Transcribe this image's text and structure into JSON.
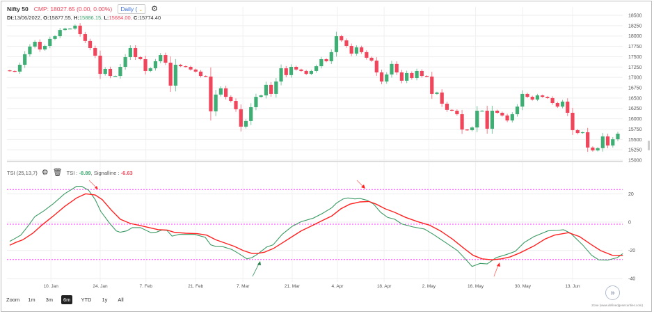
{
  "header": {
    "symbol": "Nifty 50",
    "cmp": "CMP: 18027.65 (0.00, 0.00%)",
    "interval": "Daily (",
    "date_label": "Dt:",
    "date": "13/06/2022,",
    "open_label": "O:",
    "open": "15877.55,",
    "high_label": "H:",
    "high": "15886.15,",
    "low_label": "L:",
    "low": "15684.00,",
    "close_label": "C:",
    "close": "15774.40"
  },
  "tsi": {
    "name": "TSI (25,13,7)",
    "tsi_label": "TSI :",
    "tsi_value": "-8.89",
    "signal_label": ", Signalline :",
    "signal_value": "-6.63"
  },
  "zoom": {
    "label": "Zoom",
    "options": [
      "1m",
      "3m",
      "6m",
      "YTD",
      "1y",
      "All"
    ],
    "active": "6m"
  },
  "credit": "Zone (www.definedgesecurities.com)",
  "colors": {
    "up": "#3fae74",
    "down": "#f0455a",
    "tsi": "#3a9a63",
    "signal": "#ff2020",
    "levels": "#ff33ff"
  },
  "chart_data": [
    {
      "type": "candlestick",
      "title": "Nifty 50",
      "ylim": [
        15000,
        18500
      ],
      "yticks": [
        "18500",
        "18250",
        "18000",
        "17750",
        "17500",
        "17250",
        "17000",
        "16750",
        "16500",
        "16250",
        "16000",
        "15750",
        "15500",
        "15250",
        "15000"
      ],
      "closes": [
        17155,
        17140,
        17305,
        17560,
        17745,
        17860,
        17675,
        17760,
        17930,
        17995,
        18145,
        18180,
        18180,
        18250,
        18045,
        17880,
        17710,
        17525,
        17085,
        17205,
        17035,
        17035,
        17255,
        17490,
        17710,
        17490,
        17440,
        17155,
        17220,
        17390,
        17540,
        17355,
        16800,
        17305,
        17270,
        17255,
        17190,
        17140,
        17035,
        17020,
        16180,
        16585,
        16735,
        16530,
        16430,
        16230,
        15810,
        15945,
        16280,
        16530,
        16565,
        16820,
        16600,
        16900,
        17220,
        17055,
        17255,
        17190,
        17155,
        17085,
        17155,
        17270,
        17440,
        17390,
        17610,
        17995,
        17895,
        17760,
        17575,
        17725,
        17610,
        17475,
        17405,
        17120,
        16900,
        17070,
        17325,
        17120,
        16920,
        17105,
        16985,
        17155,
        17035,
        17020,
        16600,
        16635,
        16365,
        16215,
        16195,
        16110,
        15740,
        15725,
        15790,
        16195,
        16195,
        15760,
        16195,
        16145,
        16080,
        15960,
        16110,
        16295,
        16600,
        16530,
        16465,
        16565,
        16530,
        16500,
        16380,
        16295,
        16415,
        16145,
        15725,
        15655,
        15675,
        15305,
        15235,
        15290,
        15575,
        15355,
        15505,
        15640
      ],
      "xticks": [
        {
          "label": "10. Jan",
          "bar": 8.2
        },
        {
          "label": "24. Jan",
          "bar": 18.0
        },
        {
          "label": "7. Feb",
          "bar": 27.1
        },
        {
          "label": "21. Feb",
          "bar": 37.0
        },
        {
          "label": "7. Mar",
          "bar": 46.4
        },
        {
          "label": "21. Mar",
          "bar": 56.2
        },
        {
          "label": "4. Apr",
          "bar": 65.2
        },
        {
          "label": "18. Apr",
          "bar": 74.5
        },
        {
          "label": "2. May",
          "bar": 83.4
        },
        {
          "label": "16. May",
          "bar": 92.7
        },
        {
          "label": "30. May",
          "bar": 102.1
        },
        {
          "label": "13. Jun",
          "bar": 112.0
        }
      ]
    },
    {
      "type": "line",
      "title": "TSI (25,13,7)",
      "ylim": [
        -40,
        25
      ],
      "yticks": [
        "20",
        "0",
        "-20",
        "-40"
      ],
      "levels": [
        23,
        -1.5,
        -26.5
      ],
      "series": [
        {
          "name": "TSI",
          "points": [
            [
              0,
              -13.6
            ],
            [
              1.1,
              -11.5
            ],
            [
              2.2,
              -9.2
            ],
            [
              3.6,
              -3.0
            ],
            [
              5.0,
              3.9
            ],
            [
              6.8,
              8.0
            ],
            [
              8.7,
              13.1
            ],
            [
              10.9,
              20.0
            ],
            [
              13.3,
              25.3
            ],
            [
              14.3,
              25.3
            ],
            [
              15.7,
              22.5
            ],
            [
              17.0,
              15.9
            ],
            [
              18.1,
              7.7
            ],
            [
              19.8,
              -0.5
            ],
            [
              21.2,
              -6.2
            ],
            [
              22.0,
              -7.2
            ],
            [
              23.3,
              -6.2
            ],
            [
              24.4,
              -3.9
            ],
            [
              26.0,
              -3.9
            ],
            [
              28.1,
              -7.5
            ],
            [
              29.2,
              -7.1
            ],
            [
              30.3,
              -5.6
            ],
            [
              31.3,
              -5.9
            ],
            [
              32.3,
              -9.9
            ],
            [
              33.7,
              -8.7
            ],
            [
              36.8,
              -8.7
            ],
            [
              38.9,
              -10.8
            ],
            [
              40.0,
              -16.1
            ],
            [
              41.0,
              -17.2
            ],
            [
              42.4,
              -17.4
            ],
            [
              44.2,
              -19.4
            ],
            [
              45.6,
              -22.3
            ],
            [
              47.2,
              -26.0
            ],
            [
              48.2,
              -25.1
            ],
            [
              49.3,
              -22.7
            ],
            [
              51.1,
              -17.7
            ],
            [
              52.4,
              -16.1
            ],
            [
              54.2,
              -8.7
            ],
            [
              56.2,
              -3.0
            ],
            [
              58.0,
              0.3
            ],
            [
              60.4,
              2.8
            ],
            [
              62.2,
              6.1
            ],
            [
              64.1,
              10.2
            ],
            [
              65.0,
              13.4
            ],
            [
              66.3,
              16.3
            ],
            [
              67.3,
              17.1
            ],
            [
              68.7,
              16.4
            ],
            [
              69.7,
              16.7
            ],
            [
              71.1,
              15.4
            ],
            [
              72.4,
              12.7
            ],
            [
              73.8,
              6.9
            ],
            [
              75.2,
              3.3
            ],
            [
              76.6,
              2.0
            ],
            [
              78.0,
              -1.3
            ],
            [
              80.2,
              -3.4
            ],
            [
              82.5,
              -4.9
            ],
            [
              84.3,
              -8.7
            ],
            [
              86.7,
              -14.4
            ],
            [
              89.1,
              -20.2
            ],
            [
              90.4,
              -25.1
            ],
            [
              92.0,
              -31.4
            ],
            [
              93.6,
              -29.2
            ],
            [
              95.0,
              -29.6
            ],
            [
              96.8,
              -25.1
            ],
            [
              98.8,
              -23.0
            ],
            [
              100.6,
              -20.7
            ],
            [
              102.4,
              -14.4
            ],
            [
              104.3,
              -10.3
            ],
            [
              107.1,
              -6.2
            ],
            [
              108.9,
              -5.9
            ],
            [
              110.2,
              -5.4
            ],
            [
              111.6,
              -7.9
            ],
            [
              114.0,
              -16.1
            ],
            [
              115.8,
              -23.5
            ],
            [
              117.2,
              -26.7
            ],
            [
              119.0,
              -26.9
            ],
            [
              120.9,
              -25.1
            ],
            [
              122.0,
              -22.3
            ]
          ]
        },
        {
          "name": "Signalline",
          "points": [
            [
              0,
              -16.4
            ],
            [
              1.2,
              -14.4
            ],
            [
              2.6,
              -12.5
            ],
            [
              4.6,
              -7.9
            ],
            [
              6.4,
              -2.1
            ],
            [
              8.7,
              4.4
            ],
            [
              10.9,
              11.0
            ],
            [
              13.3,
              17.1
            ],
            [
              15.1,
              20.0
            ],
            [
              17.0,
              19.2
            ],
            [
              18.4,
              15.9
            ],
            [
              20.2,
              8.5
            ],
            [
              22.0,
              2.0
            ],
            [
              24.0,
              -1.0
            ],
            [
              25.8,
              -2.3
            ],
            [
              27.6,
              -3.8
            ],
            [
              29.5,
              -5.3
            ],
            [
              31.3,
              -5.6
            ],
            [
              32.7,
              -7.2
            ],
            [
              35.0,
              -7.9
            ],
            [
              37.3,
              -8.2
            ],
            [
              39.2,
              -9.2
            ],
            [
              41.0,
              -12.5
            ],
            [
              42.8,
              -14.8
            ],
            [
              44.7,
              -17.2
            ],
            [
              46.5,
              -20.2
            ],
            [
              48.2,
              -22.2
            ],
            [
              49.3,
              -22.2
            ],
            [
              50.7,
              -21.3
            ],
            [
              52.5,
              -18.6
            ],
            [
              54.4,
              -14.4
            ],
            [
              56.2,
              -10.3
            ],
            [
              58.0,
              -6.2
            ],
            [
              60.4,
              -2.1
            ],
            [
              62.2,
              1.1
            ],
            [
              64.1,
              4.4
            ],
            [
              65.9,
              9.4
            ],
            [
              67.7,
              12.7
            ],
            [
              69.7,
              14.3
            ],
            [
              71.5,
              14.6
            ],
            [
              72.9,
              12.7
            ],
            [
              74.7,
              9.4
            ],
            [
              76.6,
              6.9
            ],
            [
              78.8,
              3.3
            ],
            [
              81.2,
              0.3
            ],
            [
              83.5,
              -2.1
            ],
            [
              85.7,
              -6.2
            ],
            [
              88.1,
              -12.0
            ],
            [
              90.4,
              -18.6
            ],
            [
              92.2,
              -23.5
            ],
            [
              94.0,
              -26.0
            ],
            [
              96.0,
              -26.7
            ],
            [
              97.8,
              -26.0
            ],
            [
              99.6,
              -24.6
            ],
            [
              101.5,
              -21.8
            ],
            [
              104.3,
              -16.9
            ],
            [
              106.5,
              -12.0
            ],
            [
              108.4,
              -9.2
            ],
            [
              111.2,
              -7.5
            ],
            [
              113.4,
              -10.3
            ],
            [
              115.8,
              -16.1
            ],
            [
              117.6,
              -20.2
            ],
            [
              119.9,
              -23.5
            ],
            [
              122.0,
              -23.6
            ]
          ]
        }
      ]
    }
  ]
}
